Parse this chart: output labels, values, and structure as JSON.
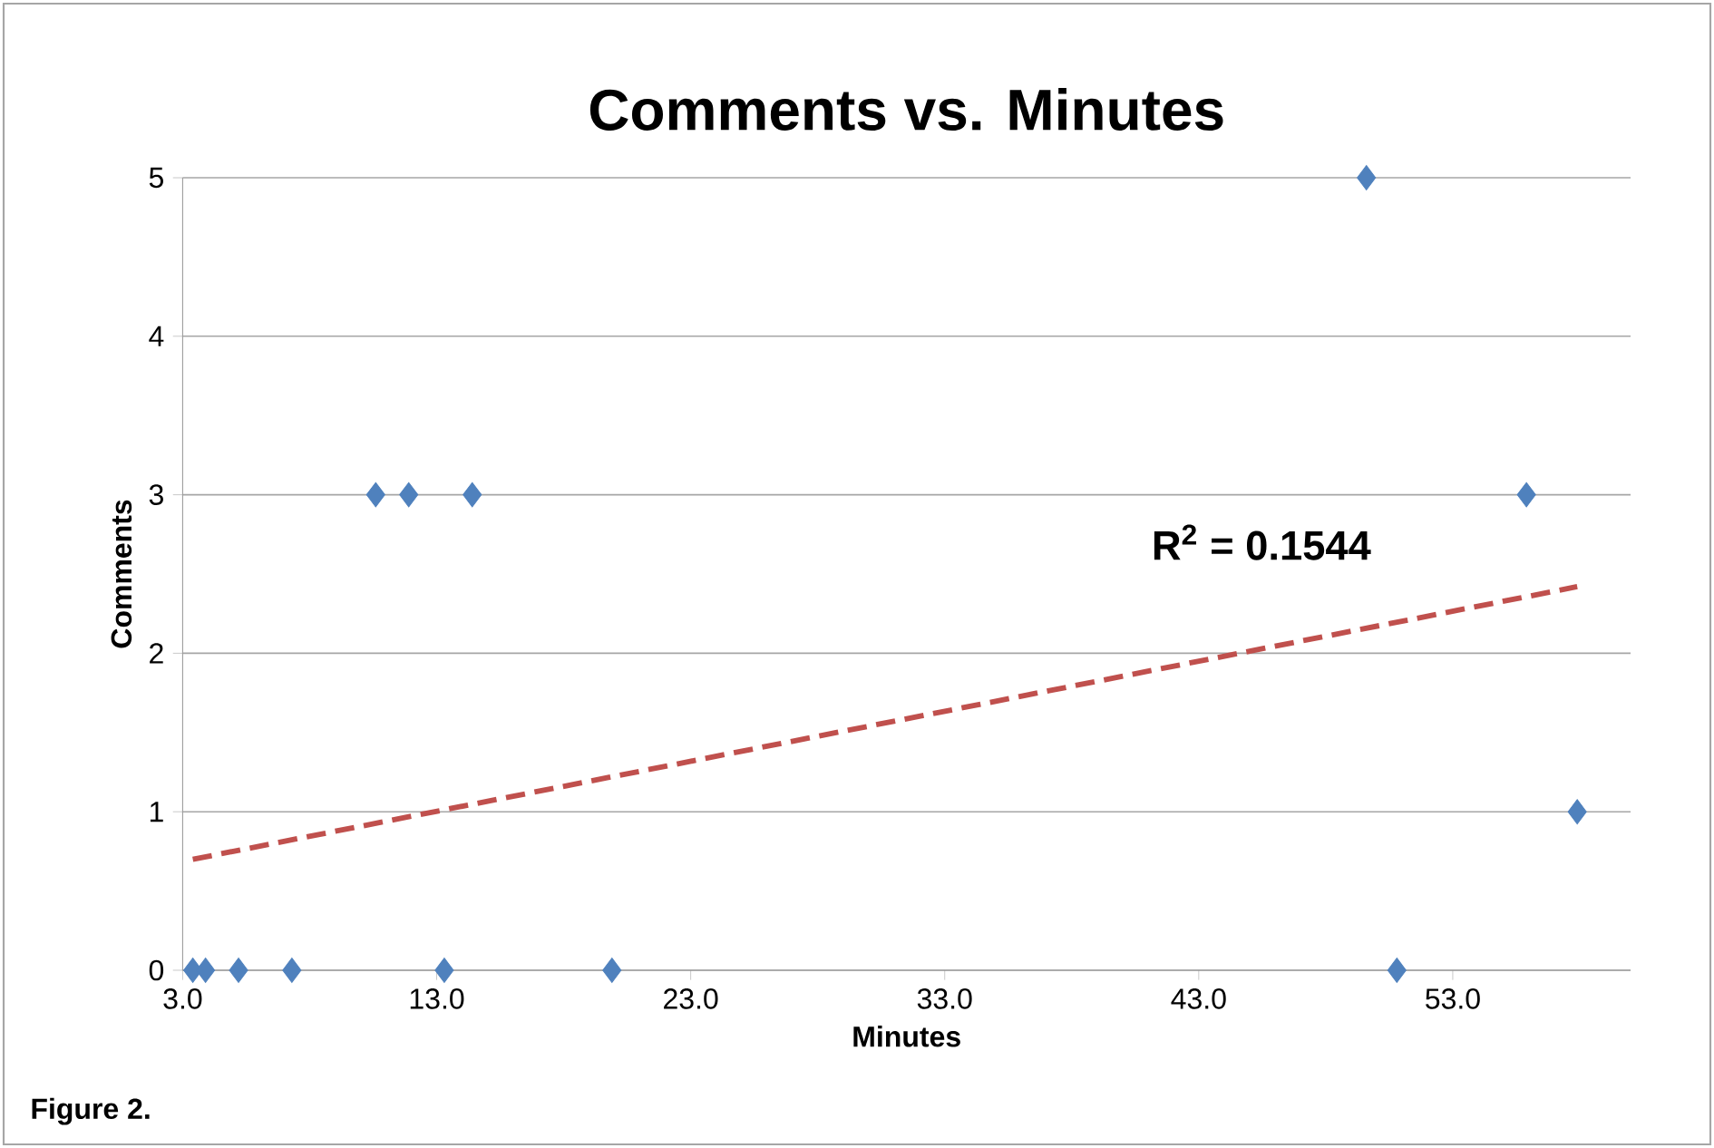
{
  "chart_data": {
    "type": "scatter",
    "title": "Comments vs. Minutes",
    "xlabel": "Minutes",
    "ylabel": "Comments",
    "series": [
      {
        "color": "#4f81bd",
        "marker": "diamond",
        "x": [
          3.4,
          3.9,
          5.2,
          7.3,
          13.3,
          19.9,
          50.8,
          10.6,
          11.9,
          14.4,
          49.6,
          55.9,
          57.9
        ],
        "values": [
          0,
          0,
          0,
          0,
          0,
          0,
          0,
          3,
          3,
          3,
          5,
          3,
          1
        ]
      },
      {
        "type": "line",
        "color": "#c0504d",
        "line_style": "dashed",
        "marker": "none",
        "x": [
          3.4,
          57.9
        ],
        "values": [
          0.7,
          2.42
        ]
      }
    ],
    "xlim": [
      3,
      60
    ],
    "ylim": [
      0,
      5
    ],
    "xticks": [
      {
        "value": 3,
        "label": "3.0"
      },
      {
        "value": 13,
        "label": "13.0"
      },
      {
        "value": 23,
        "label": "23.0"
      },
      {
        "value": 33,
        "label": "33.0"
      },
      {
        "value": 43,
        "label": "43.0"
      },
      {
        "value": 53,
        "label": "53.0"
      }
    ],
    "yticks": [
      0,
      1,
      2,
      3,
      4,
      5
    ],
    "grid": "y",
    "annotations": [
      "**R$^{2}$ = 0.1544**",
      "**Figure 2.**"
    ]
  }
}
